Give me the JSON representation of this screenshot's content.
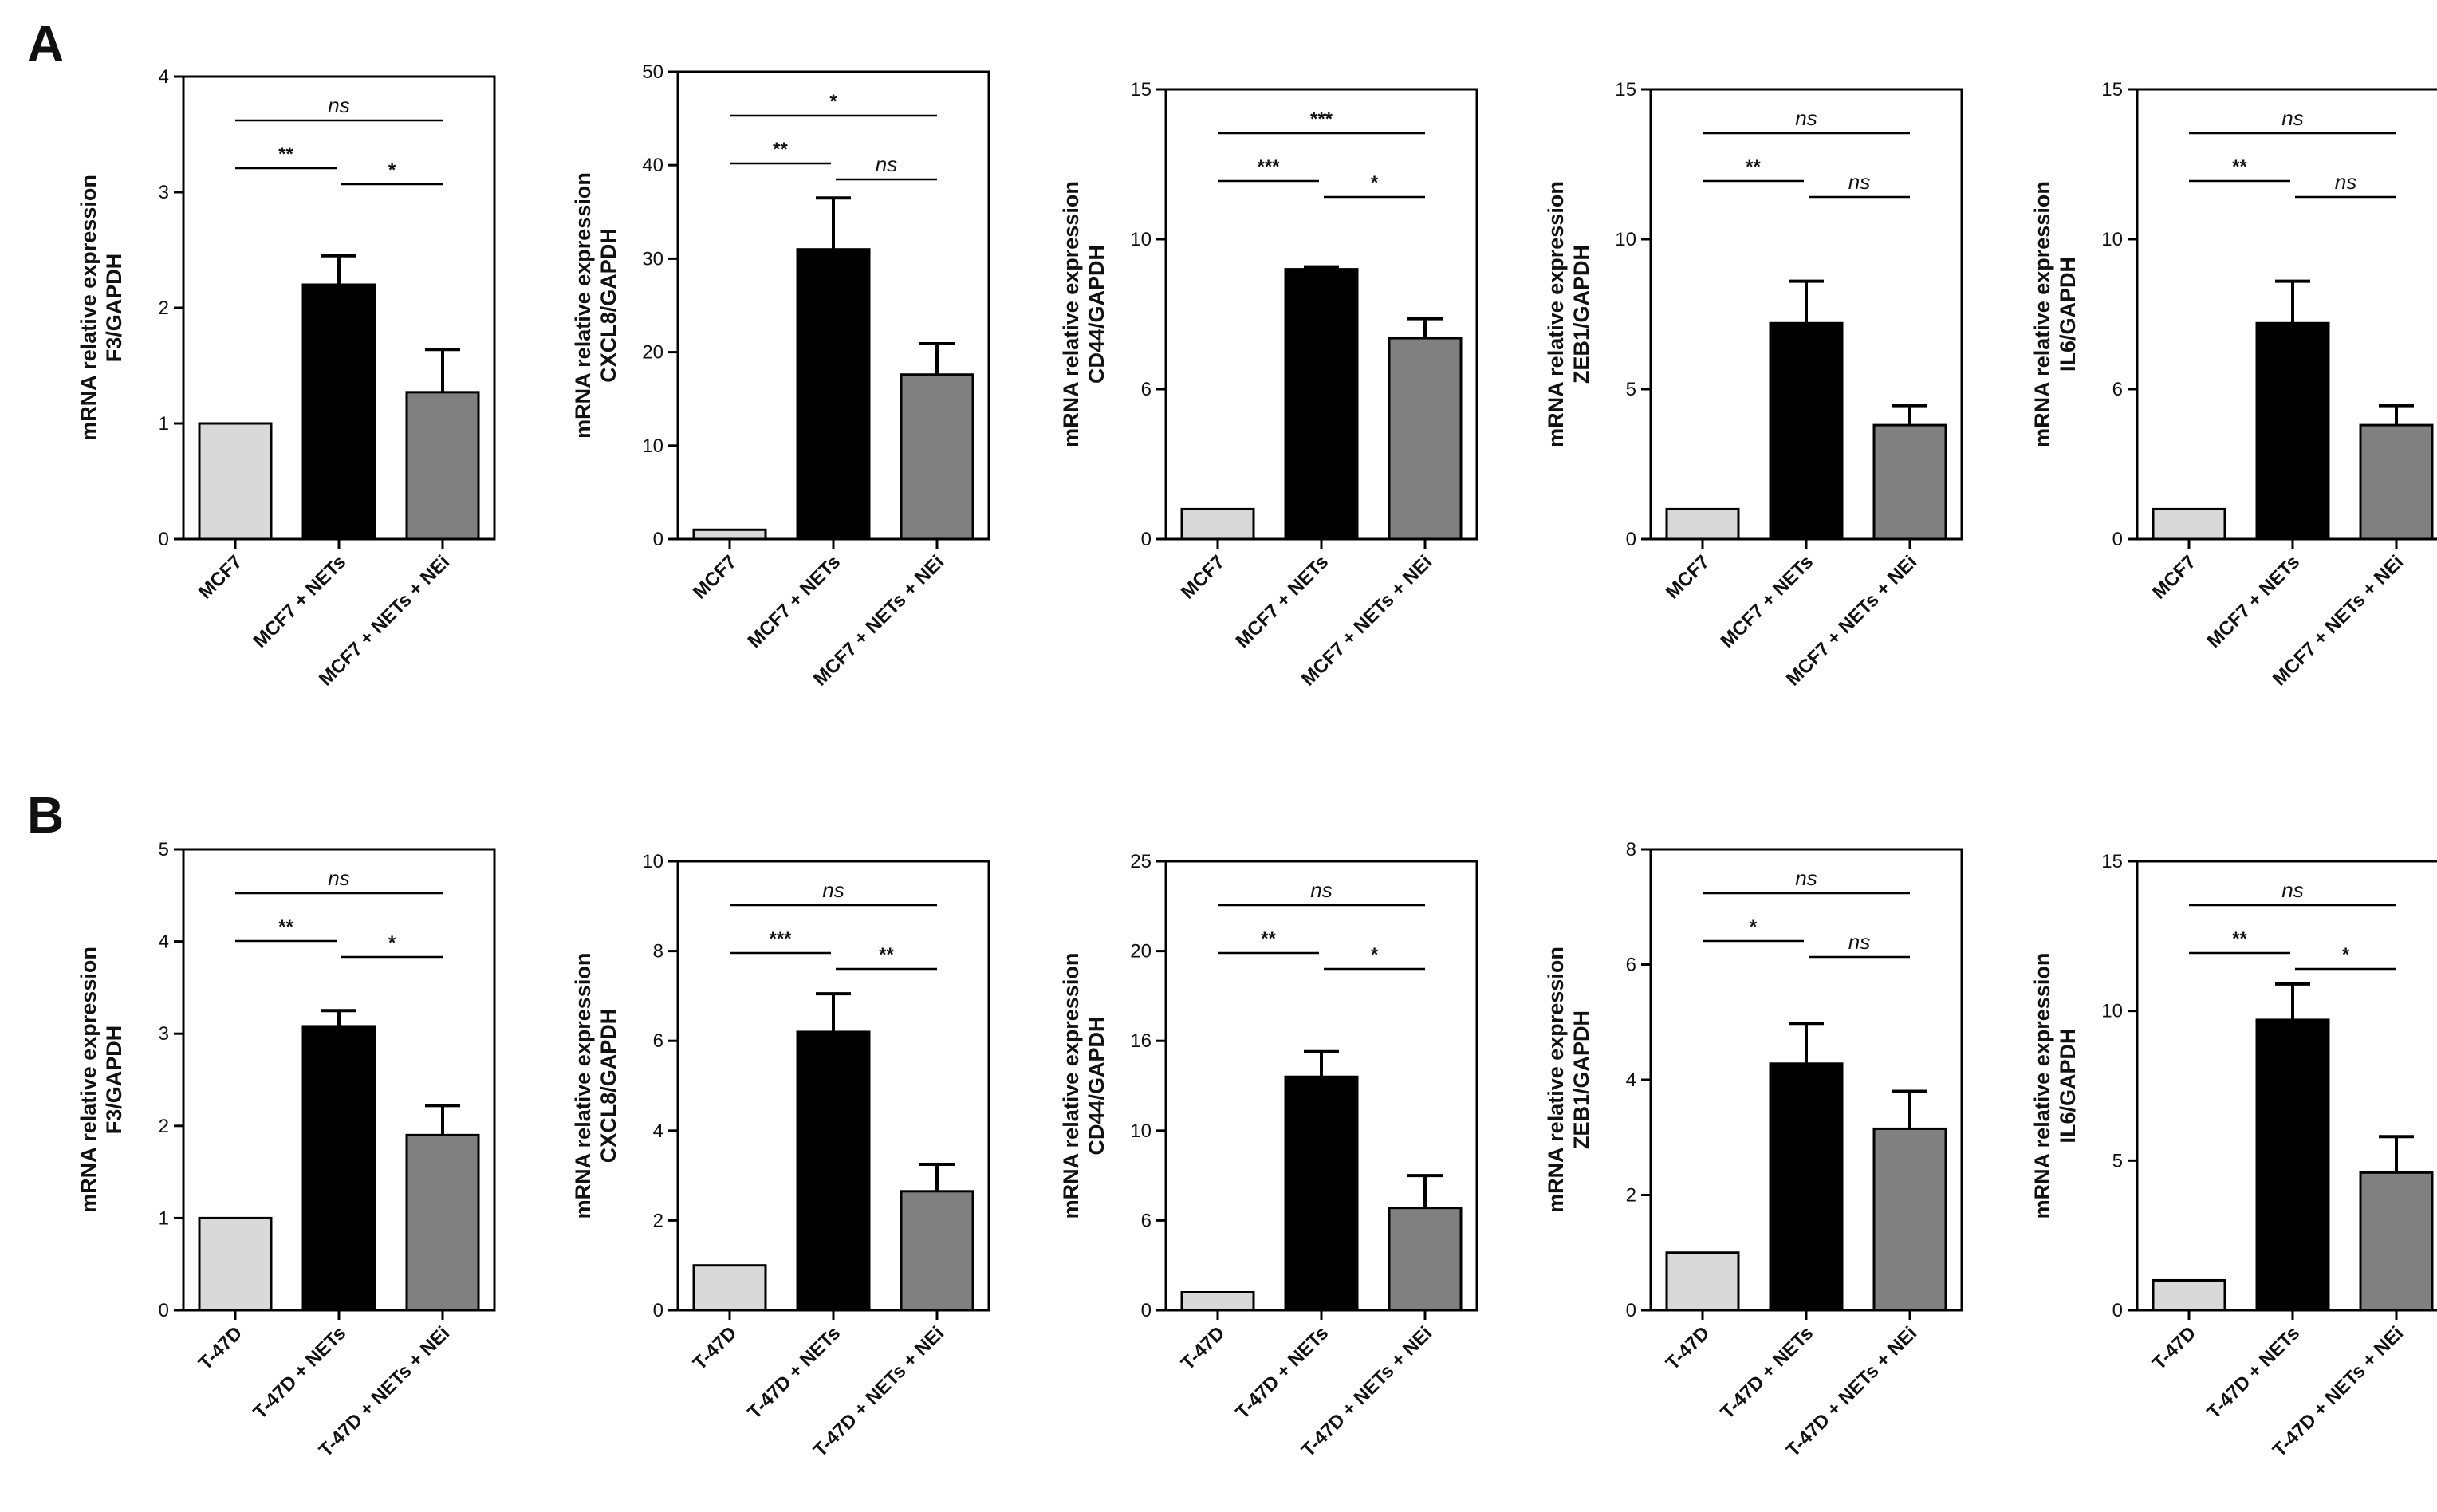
{
  "panels": [
    {
      "label": "A"
    },
    {
      "label": "B"
    }
  ],
  "chart_data": [
    {
      "type": "bar",
      "panel": "A",
      "ylabel": [
        "mRNA relative expression",
        "F3/GAPDH"
      ],
      "categories": [
        "MCF7",
        "MCF7 + NETs",
        "MCF7 + NETs + NEi"
      ],
      "values": [
        1,
        2.2,
        1.27
      ],
      "errors": [
        0,
        0.25,
        0.37
      ],
      "ylim": [
        0,
        4
      ],
      "yticks": [
        "0",
        "1",
        "2",
        "3",
        "4"
      ],
      "significance": [
        {
          "from": 0,
          "to": 1,
          "label": "**"
        },
        {
          "from": 1,
          "to": 2,
          "label": "*"
        },
        {
          "from": 0,
          "to": 2,
          "label": "ns"
        }
      ]
    },
    {
      "type": "bar",
      "panel": "A",
      "ylabel": [
        "mRNA relative expression",
        "CXCL8/GAPDH"
      ],
      "categories": [
        "MCF7",
        "MCF7 + NETs",
        "MCF7 + NETs + NEi"
      ],
      "values": [
        1,
        31,
        17.6
      ],
      "errors": [
        0,
        5.5,
        3.3
      ],
      "ylim": [
        0,
        50
      ],
      "yticks": [
        "0",
        "10",
        "20",
        "30",
        "40",
        "50"
      ],
      "significance": [
        {
          "from": 0,
          "to": 1,
          "label": "**"
        },
        {
          "from": 1,
          "to": 2,
          "label": "ns"
        },
        {
          "from": 0,
          "to": 2,
          "label": "*"
        }
      ]
    },
    {
      "type": "bar",
      "panel": "A",
      "ylabel": [
        "mRNA relative expression",
        "CD44/GAPDH"
      ],
      "categories": [
        "MCF7",
        "MCF7 + NETs",
        "MCF7 + NETs + NEi"
      ],
      "values": [
        1,
        9,
        6.7
      ],
      "errors": [
        0,
        0.08,
        0.65
      ],
      "ylim": [
        0,
        15
      ],
      "yticks": [
        "0",
        "6",
        "10",
        "15"
      ],
      "significance": [
        {
          "from": 0,
          "to": 1,
          "label": "***"
        },
        {
          "from": 1,
          "to": 2,
          "label": "*"
        },
        {
          "from": 0,
          "to": 2,
          "label": "***"
        }
      ]
    },
    {
      "type": "bar",
      "panel": "A",
      "ylabel": [
        "mRNA relative expression",
        "ZEB1/GAPDH"
      ],
      "categories": [
        "MCF7",
        "MCF7 + NETs",
        "MCF7 + NETs + NEi"
      ],
      "values": [
        1,
        7.2,
        3.8
      ],
      "errors": [
        0,
        1.4,
        0.65
      ],
      "ylim": [
        0,
        15
      ],
      "yticks": [
        "0",
        "5",
        "10",
        "15"
      ],
      "significance": [
        {
          "from": 0,
          "to": 1,
          "label": "**"
        },
        {
          "from": 1,
          "to": 2,
          "label": "ns"
        },
        {
          "from": 0,
          "to": 2,
          "label": "ns"
        }
      ]
    },
    {
      "type": "bar",
      "panel": "A",
      "ylabel": [
        "mRNA relative expression",
        "IL6/GAPDH"
      ],
      "categories": [
        "MCF7",
        "MCF7 + NETs",
        "MCF7 + NETs + NEi"
      ],
      "values": [
        1,
        7.2,
        3.8
      ],
      "errors": [
        0,
        1.4,
        0.65
      ],
      "ylim": [
        0,
        15
      ],
      "yticks": [
        "0",
        "6",
        "10",
        "15"
      ],
      "significance": [
        {
          "from": 0,
          "to": 1,
          "label": "**"
        },
        {
          "from": 1,
          "to": 2,
          "label": "ns"
        },
        {
          "from": 0,
          "to": 2,
          "label": "ns"
        }
      ]
    },
    {
      "type": "bar",
      "panel": "B",
      "ylabel": [
        "mRNA relative expression",
        "F3/GAPDH"
      ],
      "categories": [
        "T-47D",
        "T-47D + NETs",
        "T-47D + NETs + NEi"
      ],
      "values": [
        1,
        3.08,
        1.9
      ],
      "errors": [
        0,
        0.17,
        0.32
      ],
      "ylim": [
        0,
        5
      ],
      "yticks": [
        "0",
        "1",
        "2",
        "3",
        "4",
        "5"
      ],
      "significance": [
        {
          "from": 0,
          "to": 1,
          "label": "**"
        },
        {
          "from": 1,
          "to": 2,
          "label": "*"
        },
        {
          "from": 0,
          "to": 2,
          "label": "ns"
        }
      ]
    },
    {
      "type": "bar",
      "panel": "B",
      "ylabel": [
        "mRNA relative expression",
        "CXCL8/GAPDH"
      ],
      "categories": [
        "T-47D",
        "T-47D + NETs",
        "T-47D + NETs + NEi"
      ],
      "values": [
        1,
        6.2,
        2.65
      ],
      "errors": [
        0,
        0.85,
        0.6
      ],
      "ylim": [
        0,
        10
      ],
      "yticks": [
        "0",
        "2",
        "4",
        "6",
        "8",
        "10"
      ],
      "significance": [
        {
          "from": 0,
          "to": 1,
          "label": "***"
        },
        {
          "from": 1,
          "to": 2,
          "label": "**"
        },
        {
          "from": 0,
          "to": 2,
          "label": "ns"
        }
      ]
    },
    {
      "type": "bar",
      "panel": "B",
      "ylabel": [
        "mRNA relative expression",
        "CD44/GAPDH"
      ],
      "categories": [
        "T-47D",
        "T-47D + NETs",
        "T-47D + NETs + NEi"
      ],
      "values": [
        1,
        13,
        5.7
      ],
      "errors": [
        0,
        1.4,
        1.8
      ],
      "ylim": [
        0,
        25
      ],
      "yticks": [
        "0",
        "6",
        "10",
        "16",
        "20",
        "25"
      ],
      "significance": [
        {
          "from": 0,
          "to": 1,
          "label": "**"
        },
        {
          "from": 1,
          "to": 2,
          "label": "*"
        },
        {
          "from": 0,
          "to": 2,
          "label": "ns"
        }
      ]
    },
    {
      "type": "bar",
      "panel": "B",
      "ylabel": [
        "mRNA relative expression",
        "ZEB1/GAPDH"
      ],
      "categories": [
        "T-47D",
        "T-47D + NETs",
        "T-47D + NETs + NEi"
      ],
      "values": [
        1,
        4.28,
        3.15
      ],
      "errors": [
        0,
        0.7,
        0.65
      ],
      "ylim": [
        0,
        8
      ],
      "yticks": [
        "0",
        "2",
        "4",
        "6",
        "8"
      ],
      "significance": [
        {
          "from": 0,
          "to": 1,
          "label": "*"
        },
        {
          "from": 1,
          "to": 2,
          "label": "ns"
        },
        {
          "from": 0,
          "to": 2,
          "label": "ns"
        }
      ]
    },
    {
      "type": "bar",
      "panel": "B",
      "ylabel": [
        "mRNA relative expression",
        "IL6/GAPDH"
      ],
      "categories": [
        "T-47D",
        "T-47D + NETs",
        "T-47D + NETs + NEi"
      ],
      "values": [
        1,
        9.7,
        4.6
      ],
      "errors": [
        0,
        1.2,
        1.2
      ],
      "ylim": [
        0,
        15
      ],
      "yticks": [
        "0",
        "5",
        "10",
        "15"
      ],
      "significance": [
        {
          "from": 0,
          "to": 1,
          "label": "**"
        },
        {
          "from": 1,
          "to": 2,
          "label": "*"
        },
        {
          "from": 0,
          "to": 2,
          "label": "ns"
        }
      ]
    }
  ],
  "colors": {
    "bar_light": "#d9d9d9",
    "bar_dark": "#000000",
    "bar_mid": "#808080",
    "line": "#000000",
    "text": "#111111"
  }
}
